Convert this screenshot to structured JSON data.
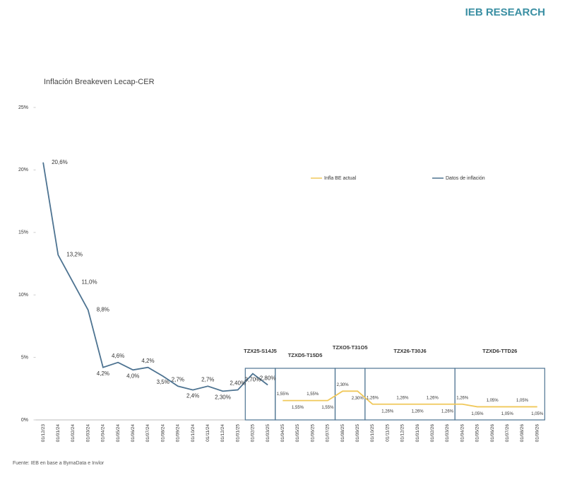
{
  "header": {
    "brand": "IEB RESEARCH"
  },
  "source": "Fuente: IEB en base a BymaData e Invlor",
  "chart_data": {
    "type": "line",
    "title": "Inflación Breakeven Lecap-CER",
    "categories": [
      "01/12/23",
      "01/01/24",
      "01/02/24",
      "01/03/24",
      "01/04/24",
      "01/05/24",
      "01/06/24",
      "01/07/24",
      "01/08/24",
      "01/09/24",
      "01/10/24",
      "01/11/24",
      "01/12/24",
      "01/01/25",
      "01/02/25",
      "01/03/25",
      "01/04/25",
      "01/05/25",
      "01/06/25",
      "01/07/25",
      "01/08/25",
      "01/09/25",
      "01/10/25",
      "01/11/25",
      "01/12/25",
      "01/01/26",
      "01/02/26",
      "01/03/26",
      "01/04/26",
      "01/05/26",
      "01/06/26",
      "01/07/26",
      "01/08/26",
      "01/09/26"
    ],
    "series": [
      {
        "name": "Infla BE actual",
        "color": "#f0c85a",
        "values": [
          null,
          null,
          null,
          null,
          null,
          null,
          null,
          null,
          null,
          null,
          null,
          null,
          null,
          null,
          null,
          null,
          1.55,
          1.55,
          1.55,
          1.55,
          2.3,
          2.3,
          1.26,
          1.26,
          1.26,
          1.26,
          1.26,
          1.26,
          1.26,
          1.05,
          1.05,
          1.05,
          1.05,
          1.05
        ],
        "value_labels": [
          null,
          null,
          null,
          null,
          null,
          null,
          null,
          null,
          null,
          null,
          null,
          null,
          null,
          null,
          null,
          null,
          "1,55%",
          "1,55%",
          "1,55%",
          "1,55%",
          "2,30%",
          "2,30%",
          "1,26%",
          "1,26%",
          "1,26%",
          "1,26%",
          "1,26%",
          "1,26%",
          "1,26%",
          "1,05%",
          "1,05%",
          "1,05%",
          "1,05%",
          "1,05%"
        ]
      },
      {
        "name": "Datos de inflación",
        "color": "#4d7391",
        "values": [
          20.6,
          13.2,
          11.0,
          8.8,
          4.2,
          4.6,
          4.0,
          4.2,
          3.5,
          2.7,
          2.4,
          2.7,
          2.3,
          2.4,
          3.7,
          2.8,
          null,
          null,
          null,
          null,
          null,
          null,
          null,
          null,
          null,
          null,
          null,
          null,
          null,
          null,
          null,
          null,
          null,
          null
        ],
        "value_labels": [
          "20,6%",
          "13,2%",
          "11,0%",
          "8,8%",
          "4,2%",
          "4,6%",
          "4,0%",
          "4,2%",
          "3,5%",
          "2,7%",
          "2,4%",
          "2,7%",
          "2,30%",
          "2,40%",
          "3,70%",
          "2,80%",
          null,
          null,
          null,
          null,
          null,
          null,
          null,
          null,
          null,
          null,
          null,
          null,
          null,
          null,
          null,
          null,
          null,
          null
        ]
      }
    ],
    "annotations": [
      "TZX25-S14J5",
      "TZXD5-T15D5",
      "TZXO5-T31O5",
      "TZX26-T30J6",
      "TZXD6-TTD26"
    ],
    "ylim": [
      0,
      25
    ],
    "yticks": [
      {
        "value": 0,
        "label": "0%"
      },
      {
        "value": 5,
        "label": "5%"
      },
      {
        "value": 10,
        "label": "10%"
      },
      {
        "value": 15,
        "label": "15%"
      },
      {
        "value": 20,
        "label": "20%"
      },
      {
        "value": 25,
        "label": "25%"
      }
    ],
    "grid": false
  }
}
